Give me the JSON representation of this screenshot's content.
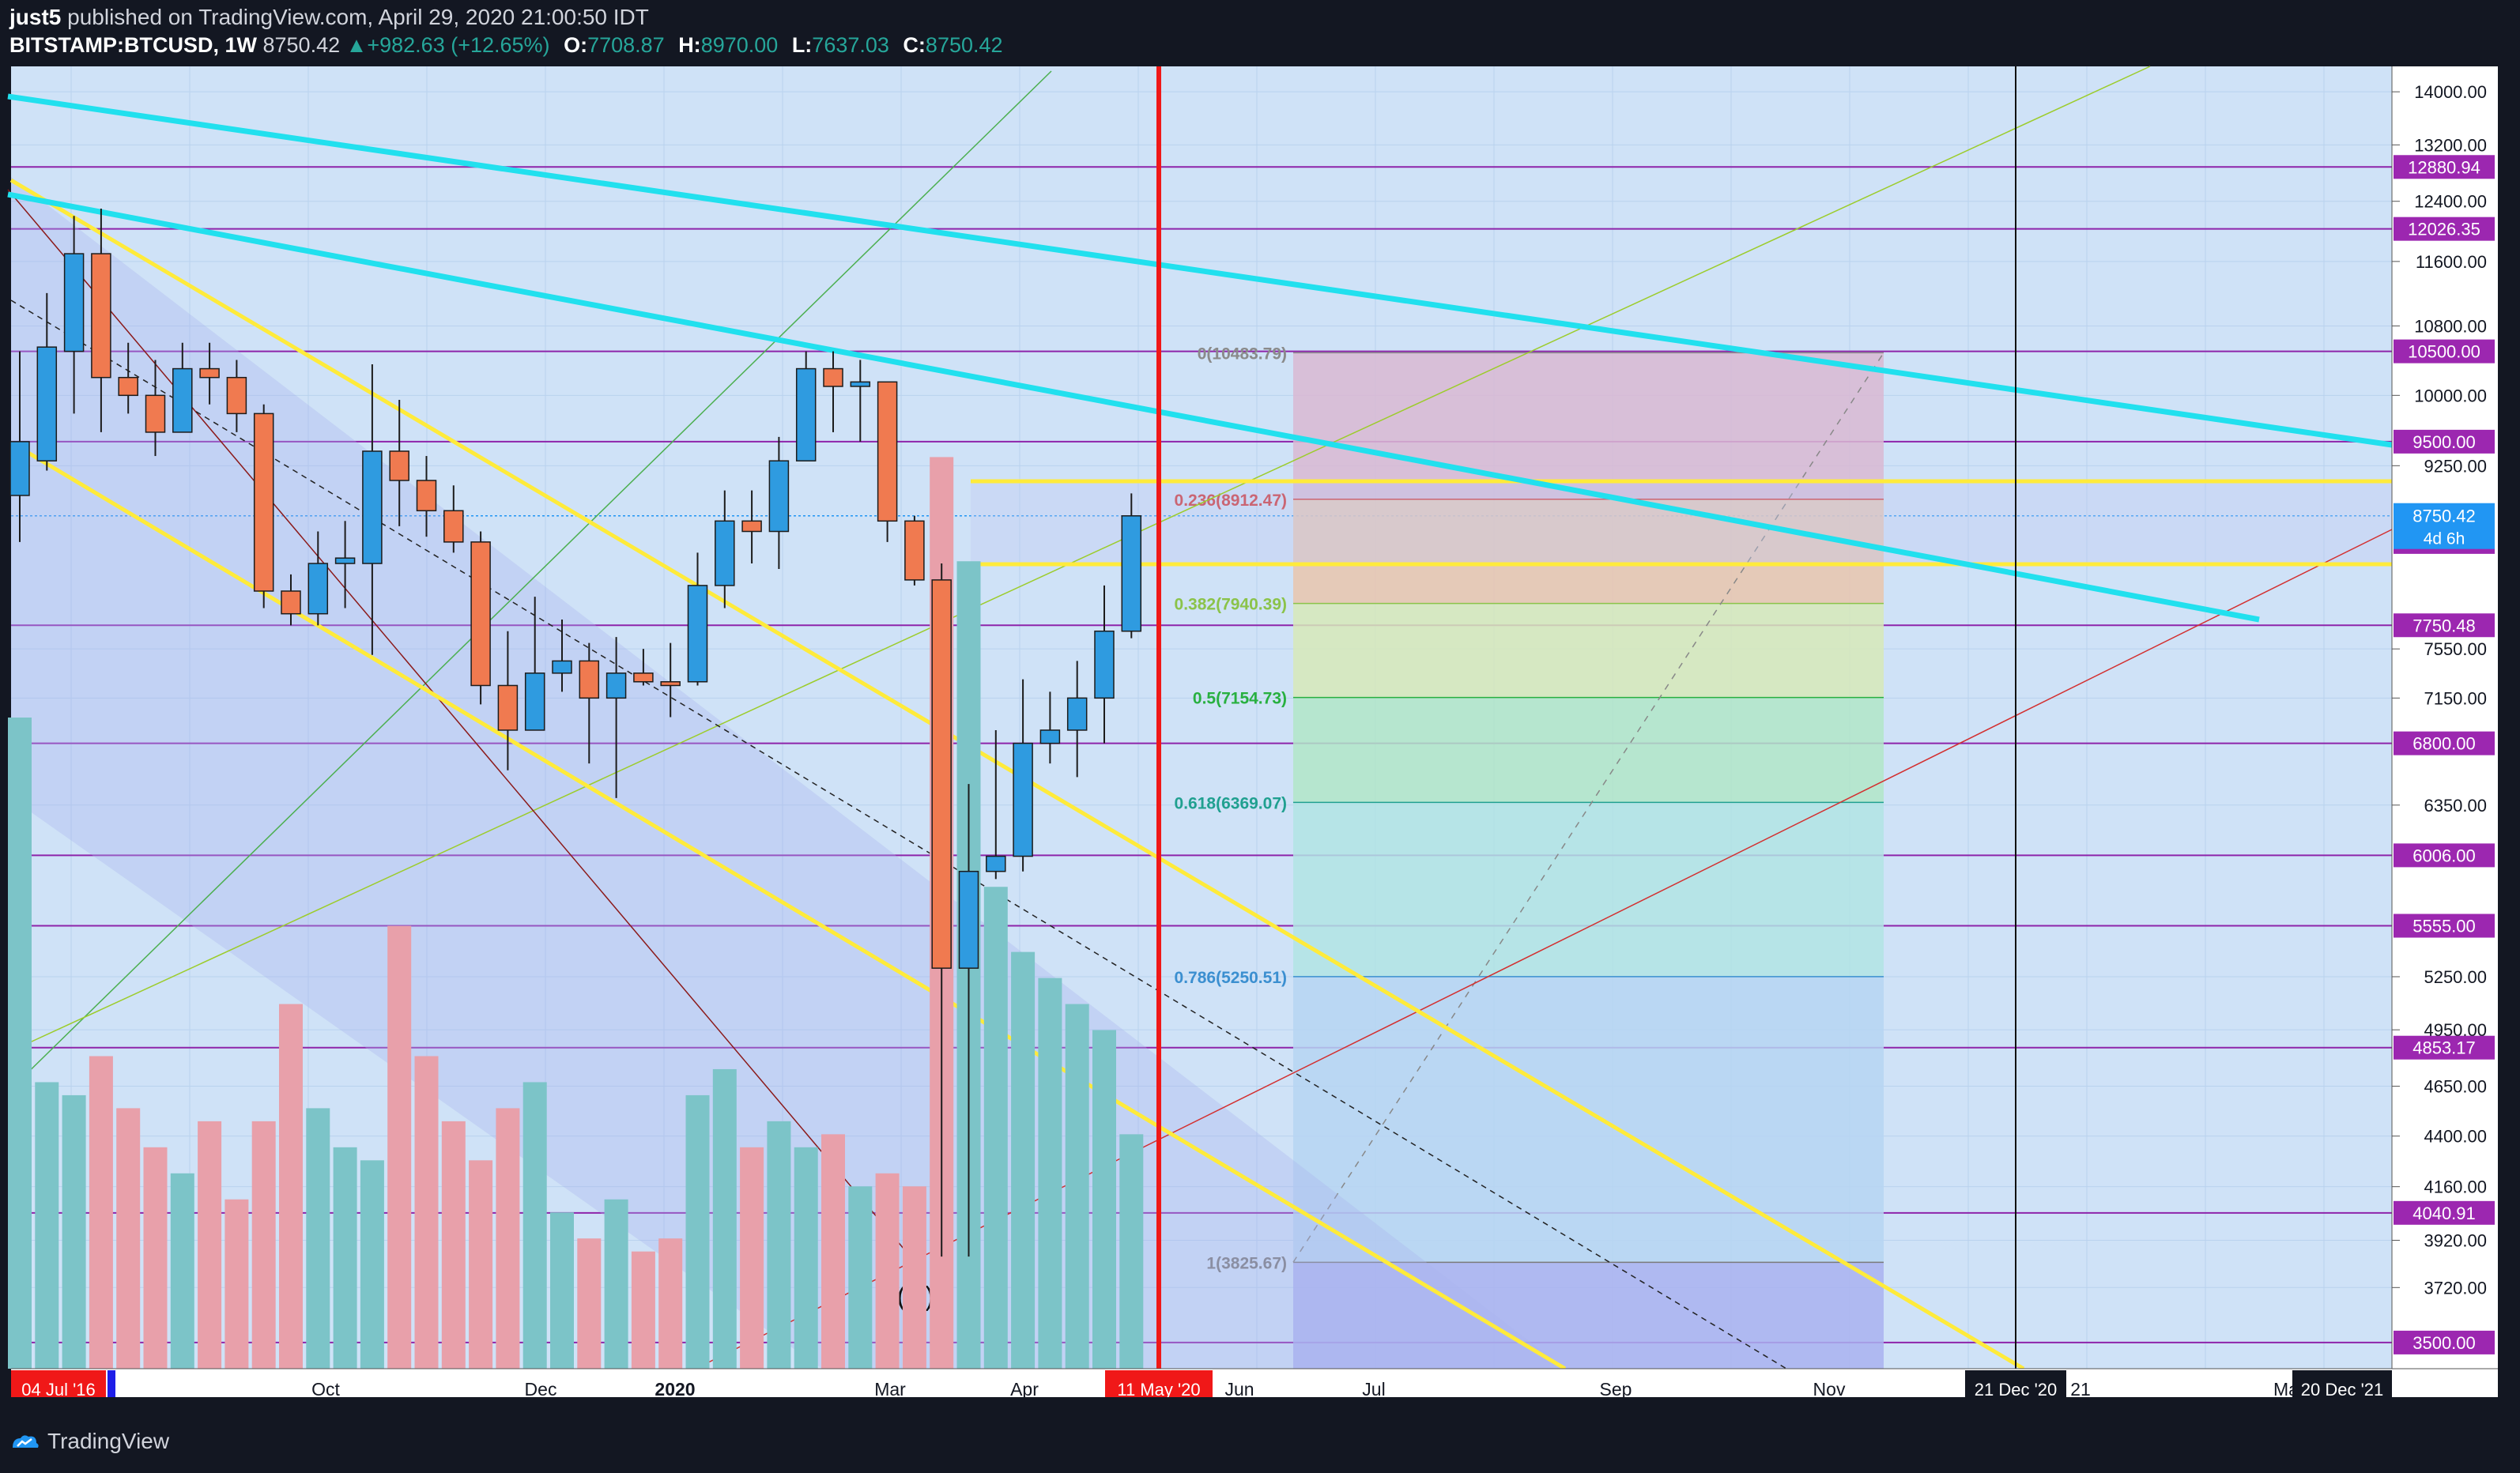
{
  "header": {
    "publisher": "just5",
    "published_text": "published on TradingView.com, April 29, 2020 21:00:50 IDT",
    "symbol": "BITSTAMP:BTCUSD, 1W",
    "last": "8750.42",
    "change": "+982.63 (+12.65%)",
    "o_label": "O:",
    "o": "7708.87",
    "h_label": "H:",
    "h": "8970.00",
    "l_label": "L:",
    "l": "7637.03",
    "c_label": "C:",
    "c": "8750.42"
  },
  "footer": {
    "brand": "TradingView"
  },
  "colors": {
    "background": "#cfe2f7",
    "up": "#2f9be0",
    "down": "#f07a50",
    "vol_up": "#7cc4c8",
    "vol_down": "#e8a0aa",
    "level_line": "#8e24aa",
    "cyan_trend": "#21e0ee",
    "yellow_channel": "#ffeb3b",
    "vertical_marker": "#f01818"
  },
  "chart_data": {
    "type": "candlestick",
    "title": "BITSTAMP:BTCUSD, 1W",
    "scale": "log",
    "ylim": [
      3400,
      14400
    ],
    "price_ticks": [
      14000,
      13200,
      12400,
      11600,
      10800,
      10000,
      9250,
      8500,
      7750,
      7150,
      6350,
      5250,
      4950,
      4650,
      4400,
      4160,
      3920,
      3720,
      3500
    ],
    "price_tick_labels": [
      "14000.00",
      "13200.00",
      "12400.00",
      "11600.00",
      "10800.00",
      "10000.00",
      "9250.00",
      "7550.00",
      "7150.00",
      "6350.00",
      "5250.00",
      "4950.00",
      "4650.00",
      "4400.00",
      "4160.00",
      "3920.00",
      "3720.00"
    ],
    "price_tick_values": [
      14000,
      13200,
      12400,
      11600,
      10800,
      10000,
      9250,
      7550,
      7150,
      6350,
      5250,
      4950,
      4650,
      4400,
      4160,
      3920,
      3720
    ],
    "horizontal_levels": [
      12880.94,
      12026.35,
      10500.0,
      9500.0,
      8500.0,
      7750.48,
      6800.0,
      6006.0,
      5555.0,
      4853.17,
      4040.91,
      3500.0
    ],
    "horizontal_level_labels": [
      "12880.94",
      "12026.35",
      "10500.00",
      "9500.00",
      "8500.00",
      "7750.48",
      "6800.00",
      "6006.00",
      "5555.00",
      "4853.17",
      "4040.91",
      "3500.00"
    ],
    "last_price": {
      "value": 8750.42,
      "label": "8750.42",
      "countdown": "4d 6h"
    },
    "time_labels": [
      "Oct",
      "Dec",
      "2020",
      "Mar",
      "Apr",
      "Jun",
      "Jul",
      "Sep",
      "Nov",
      "21",
      "Ma"
    ],
    "time_markers": [
      "04 Jul '16",
      "11 May '20",
      "21 Dec '20",
      "20 Dec '21"
    ],
    "fibonacci": [
      {
        "label": "0(10483.79)",
        "value": 10483.79
      },
      {
        "label": "0.236(8912.47)",
        "value": 8912.47
      },
      {
        "label": "0.382(7940.39)",
        "value": 7940.39
      },
      {
        "label": "0.5(7154.73)",
        "value": 7154.73
      },
      {
        "label": "0.618(6369.07)",
        "value": 6369.07
      },
      {
        "label": "0.786(5250.51)",
        "value": 5250.51
      },
      {
        "label": "1(3825.67)",
        "value": 3825.67
      }
    ],
    "wave_label": "(C)",
    "candles": [
      [
        8950,
        9500,
        8500,
        10500
      ],
      [
        9300,
        10550,
        9200,
        11200
      ],
      [
        10500,
        11700,
        9800,
        12200
      ],
      [
        11700,
        10200,
        9600,
        12300
      ],
      [
        10200,
        10000,
        9800,
        10600
      ],
      [
        10000,
        9600,
        9350,
        10400
      ],
      [
        9600,
        10300,
        9600,
        10600
      ],
      [
        10300,
        10200,
        9900,
        10600
      ],
      [
        10200,
        9800,
        9600,
        10400
      ],
      [
        9800,
        8050,
        7900,
        9900
      ],
      [
        8050,
        7850,
        7750,
        8200
      ],
      [
        7850,
        8300,
        7750,
        8600
      ],
      [
        8300,
        8350,
        7900,
        8700
      ],
      [
        8300,
        9400,
        7500,
        10350
      ],
      [
        9400,
        9100,
        8650,
        9950
      ],
      [
        9100,
        8800,
        8550,
        9350
      ],
      [
        8800,
        8500,
        8400,
        9050
      ],
      [
        8500,
        7250,
        7100,
        8600
      ],
      [
        7250,
        6900,
        6600,
        7700
      ],
      [
        6900,
        7350,
        6900,
        8000
      ],
      [
        7350,
        7450,
        7200,
        7800
      ],
      [
        7450,
        7150,
        6650,
        7600
      ],
      [
        7150,
        7350,
        6400,
        7650
      ],
      [
        7350,
        7280,
        7250,
        7550
      ],
      [
        7280,
        7250,
        7000,
        7600
      ],
      [
        7280,
        8100,
        7250,
        8400
      ],
      [
        8100,
        8700,
        7900,
        9000
      ],
      [
        8700,
        8600,
        8300,
        9000
      ],
      [
        8600,
        9300,
        8250,
        9550
      ],
      [
        9300,
        10300,
        9300,
        10500
      ],
      [
        10300,
        10100,
        9600,
        10500
      ],
      [
        10100,
        10150,
        9500,
        10400
      ],
      [
        10150,
        8700,
        8500,
        10150
      ],
      [
        8700,
        8150,
        8100,
        8750
      ],
      [
        8150,
        5300,
        3850,
        8300
      ],
      [
        5300,
        5900,
        3850,
        6500
      ],
      [
        5900,
        6000,
        5850,
        6900
      ],
      [
        6000,
        6800,
        5900,
        7300
      ],
      [
        6800,
        6900,
        6650,
        7200
      ],
      [
        6900,
        7150,
        6550,
        7450
      ],
      [
        7150,
        7700,
        6800,
        8100
      ],
      [
        7700,
        8750,
        7640,
        8970
      ]
    ],
    "volume_relative": [
      0.5,
      0.22,
      0.21,
      0.24,
      0.2,
      0.17,
      0.15,
      0.19,
      0.13,
      0.19,
      0.28,
      0.2,
      0.17,
      0.16,
      0.34,
      0.24,
      0.19,
      0.16,
      0.2,
      0.22,
      0.12,
      0.1,
      0.13,
      0.09,
      0.1,
      0.21,
      0.23,
      0.17,
      0.19,
      0.17,
      0.18,
      0.14,
      0.15,
      0.14,
      0.7,
      0.62,
      0.37,
      0.32,
      0.3,
      0.28,
      0.26,
      0.18
    ]
  }
}
